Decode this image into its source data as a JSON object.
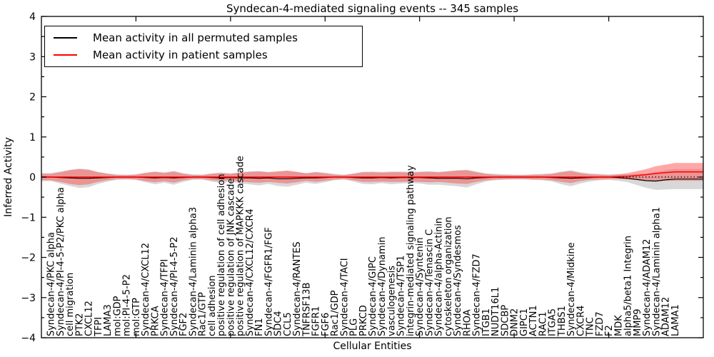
{
  "chart_data": {
    "type": "line",
    "title": "Syndecan-4-mediated signaling events -- 345 samples",
    "xlabel": "Cellular Entities",
    "ylabel": "Inferred Activity",
    "ylim": [
      -4,
      4
    ],
    "xlim": [
      0,
      70
    ],
    "yticks": [
      -4,
      -3,
      -2,
      -1,
      0,
      1,
      2,
      3,
      4
    ],
    "y_minor_step": 0.5,
    "x_major_ticks": [
      10,
      20,
      30,
      40,
      50,
      60
    ],
    "grid": false,
    "legend_position": "upper left",
    "legend": [
      "Mean activity in all permuted samples",
      "Mean activity in patient samples"
    ],
    "colors": {
      "permuted": "#000000",
      "patient": "#ff0000",
      "permuted_band": "#a8a8a8",
      "patient_band": "#ff5050",
      "zero_line": "#000000"
    },
    "categories": [
      "Syndecan-4/PKC alpha",
      "Syndecan-4/PI-4-5-P2/PKC alpha",
      "cell migration",
      "PTK2",
      "CXCL12",
      "TFPI",
      "LAMA3",
      "mol:GDP",
      "mol:PI-4-5-P2",
      "mol:GTP",
      "Syndecan-4/CXCL12",
      "PRKCA",
      "Syndecan-4/TFPI",
      "Syndecan-4/PI-4-5-P2",
      "FGF2",
      "Syndecan-4/Laminin alpha3",
      "Rac1/GTP",
      "cell adhesion",
      "positive regulation of cell adhesion",
      "positive regulation of JNK cascade",
      "positive regulation of MAPKKK cascade",
      "Syndecan-4/CXCL12/CXCR4",
      "FN1",
      "Syndecan-4/FGFR1/FGF",
      "SDC4",
      "CCL5",
      "Syndecan-4/RANTES",
      "TNFRSF13B",
      "FGFR1",
      "FGF6",
      "Rac1/GDP",
      "Syndecan-4/TACI",
      "PLG",
      "PRKCD",
      "Syndecan-4/GIPC",
      "Syndecan-4/Dynamin",
      "vasculogenesis",
      "Syndecan-4/TSP1",
      "integrin-mediated signaling pathway",
      "Syndecan-4/Syntenin",
      "Syndecan-4/Tenascin C",
      "Syndecan-4/alpha-Actinin",
      "cytoskeleton organization",
      "Syndecan-4/Syndesmos",
      "RHOA",
      "Syndecan-4/FZD7",
      "ITGB1",
      "NUDT16L1",
      "SDCBP",
      "DNM2",
      "GIPC1",
      "ACTN1",
      "RAC1",
      "ITGA5",
      "THBS1",
      "Syndecan-4/Midkine",
      "CXCR4",
      "TNC",
      "FZD7",
      "F2",
      "MDK",
      "alpha5/beta1 Integrin",
      "MMP9",
      "Syndecan-4/ADAM12",
      "Syndecan-4/Laminin alpha1",
      "ADAM12",
      "LAMA1"
    ],
    "series": [
      {
        "name": "Mean activity in all permuted samples",
        "values": [
          0,
          -0.01,
          -0.02,
          -0.03,
          -0.03,
          -0.02,
          -0.01,
          0,
          0,
          0,
          -0.01,
          -0.02,
          -0.01,
          -0.02,
          -0.01,
          0,
          0,
          -0.01,
          -0.02,
          -0.01,
          -0.02,
          -0.02,
          -0.03,
          -0.02,
          -0.04,
          -0.04,
          -0.03,
          -0.02,
          -0.02,
          -0.01,
          0,
          0,
          -0.01,
          -0.02,
          -0.02,
          -0.01,
          -0.02,
          -0.01,
          -0.01,
          -0.01,
          -0.02,
          -0.03,
          -0.03,
          -0.03,
          -0.04,
          -0.02,
          -0.01,
          0,
          0,
          0,
          0,
          0,
          0,
          -0.01,
          -0.02,
          -0.03,
          -0.02,
          -0.01,
          0,
          0,
          -0.01,
          -0.03,
          -0.06,
          -0.09,
          -0.1,
          -0.07,
          -0.05
        ],
        "spread": [
          0.1,
          0.15,
          0.2,
          0.24,
          0.22,
          0.15,
          0.1,
          0.07,
          0.06,
          0.07,
          0.12,
          0.16,
          0.13,
          0.17,
          0.11,
          0.07,
          0.06,
          0.1,
          0.13,
          0.1,
          0.14,
          0.16,
          0.18,
          0.15,
          0.18,
          0.2,
          0.16,
          0.12,
          0.15,
          0.12,
          0.08,
          0.06,
          0.1,
          0.15,
          0.16,
          0.14,
          0.16,
          0.15,
          0.14,
          0.15,
          0.17,
          0.16,
          0.18,
          0.2,
          0.22,
          0.16,
          0.1,
          0.08,
          0.07,
          0.06,
          0.06,
          0.07,
          0.08,
          0.1,
          0.16,
          0.2,
          0.14,
          0.1,
          0.08,
          0.07,
          0.08,
          0.1,
          0.14,
          0.18,
          0.22,
          0.24,
          0.25
        ]
      },
      {
        "name": "Mean activity in patient samples",
        "values": [
          0,
          0,
          0,
          0,
          0,
          0,
          0,
          0,
          0,
          0,
          0,
          0,
          0,
          0,
          0,
          0,
          0,
          0,
          0,
          0,
          0,
          0,
          0,
          0,
          0,
          0,
          0,
          0,
          0,
          0,
          0,
          0,
          0,
          0,
          0,
          0,
          0,
          0,
          0,
          0,
          0,
          0,
          0,
          0,
          0,
          0,
          0,
          0,
          0,
          0,
          0,
          0,
          0,
          0,
          0,
          0,
          0,
          0,
          0,
          0,
          0.01,
          0.02,
          0.04,
          0.06,
          0.09,
          0.11,
          0.13
        ],
        "spread": [
          0.08,
          0.12,
          0.17,
          0.2,
          0.18,
          0.12,
          0.08,
          0.05,
          0.05,
          0.06,
          0.1,
          0.13,
          0.1,
          0.14,
          0.08,
          0.05,
          0.05,
          0.08,
          0.1,
          0.08,
          0.11,
          0.13,
          0.14,
          0.12,
          0.14,
          0.16,
          0.13,
          0.09,
          0.12,
          0.09,
          0.06,
          0.05,
          0.08,
          0.12,
          0.12,
          0.11,
          0.12,
          0.12,
          0.11,
          0.12,
          0.13,
          0.12,
          0.14,
          0.16,
          0.17,
          0.12,
          0.08,
          0.06,
          0.05,
          0.05,
          0.05,
          0.06,
          0.06,
          0.08,
          0.12,
          0.15,
          0.1,
          0.07,
          0.06,
          0.05,
          0.06,
          0.08,
          0.11,
          0.14,
          0.18,
          0.2,
          0.22
        ]
      }
    ]
  }
}
